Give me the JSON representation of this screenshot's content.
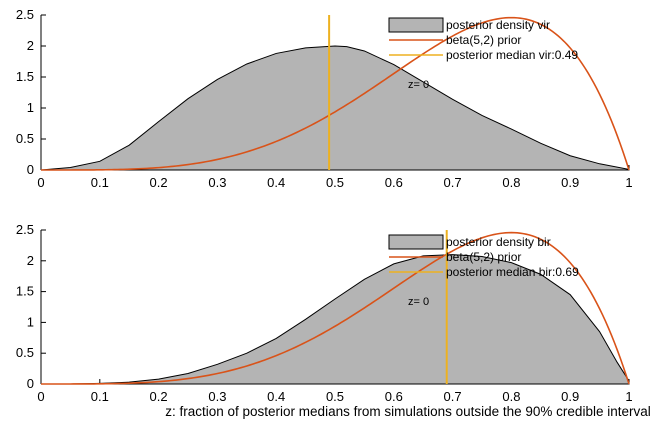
{
  "chart_data": [
    {
      "type": "area",
      "xlim": [
        0,
        1
      ],
      "ylim": [
        0,
        2.5
      ],
      "x_ticks": [
        "0",
        "0.1",
        "0.2",
        "0.3",
        "0.4",
        "0.5",
        "0.6",
        "0.7",
        "0.8",
        "0.9",
        "1"
      ],
      "y_ticks": [
        "0",
        "0.5",
        "1",
        "1.5",
        "2",
        "2.5"
      ],
      "grid": false,
      "legend_position": "top-right",
      "annotation": "z= 0",
      "series": [
        {
          "name": "posterior density vir",
          "kind": "area",
          "color": "#b4b4b4",
          "x": [
            0,
            0.05,
            0.1,
            0.15,
            0.2,
            0.25,
            0.3,
            0.35,
            0.4,
            0.45,
            0.5,
            0.52,
            0.55,
            0.6,
            0.65,
            0.7,
            0.75,
            0.8,
            0.85,
            0.9,
            0.95,
            1.0
          ],
          "y": [
            0.0,
            0.04,
            0.14,
            0.4,
            0.78,
            1.15,
            1.46,
            1.71,
            1.88,
            1.97,
            2.0,
            1.99,
            1.92,
            1.7,
            1.42,
            1.14,
            0.88,
            0.66,
            0.43,
            0.23,
            0.1,
            0.01
          ]
        },
        {
          "name": "beta(5,2) prior",
          "kind": "line",
          "color": "#d95319",
          "function": "beta(5,2)"
        },
        {
          "name": "posterior median vir:0.49",
          "kind": "vline",
          "color": "#edb120",
          "x_value": 0.49
        }
      ]
    },
    {
      "type": "area",
      "xlim": [
        0,
        1
      ],
      "ylim": [
        0,
        2.5
      ],
      "x_ticks": [
        "0",
        "0.1",
        "0.2",
        "0.3",
        "0.4",
        "0.5",
        "0.6",
        "0.7",
        "0.8",
        "0.9",
        "1"
      ],
      "y_ticks": [
        "0",
        "0.5",
        "1",
        "1.5",
        "2",
        "2.5"
      ],
      "grid": false,
      "legend_position": "top-right",
      "annotation": "z= 0",
      "series": [
        {
          "name": "posterior density bir",
          "kind": "area",
          "color": "#b4b4b4",
          "x": [
            0,
            0.05,
            0.1,
            0.15,
            0.2,
            0.25,
            0.3,
            0.35,
            0.4,
            0.45,
            0.5,
            0.55,
            0.6,
            0.65,
            0.7,
            0.75,
            0.8,
            0.85,
            0.9,
            0.95,
            0.98,
            1.0
          ],
          "y": [
            0.0,
            0.0,
            0.01,
            0.03,
            0.08,
            0.17,
            0.32,
            0.5,
            0.74,
            1.05,
            1.38,
            1.7,
            1.95,
            2.08,
            2.1,
            2.07,
            1.97,
            1.78,
            1.45,
            0.85,
            0.35,
            0.05
          ]
        },
        {
          "name": "beta(5,2) prior",
          "kind": "line",
          "color": "#d95319",
          "function": "beta(5,2)"
        },
        {
          "name": "posterior median bir:0.69",
          "kind": "vline",
          "color": "#edb120",
          "x_value": 0.69
        }
      ]
    }
  ],
  "footer_text": "z: fraction of posterior medians from simulations outside the 90% credible interval"
}
